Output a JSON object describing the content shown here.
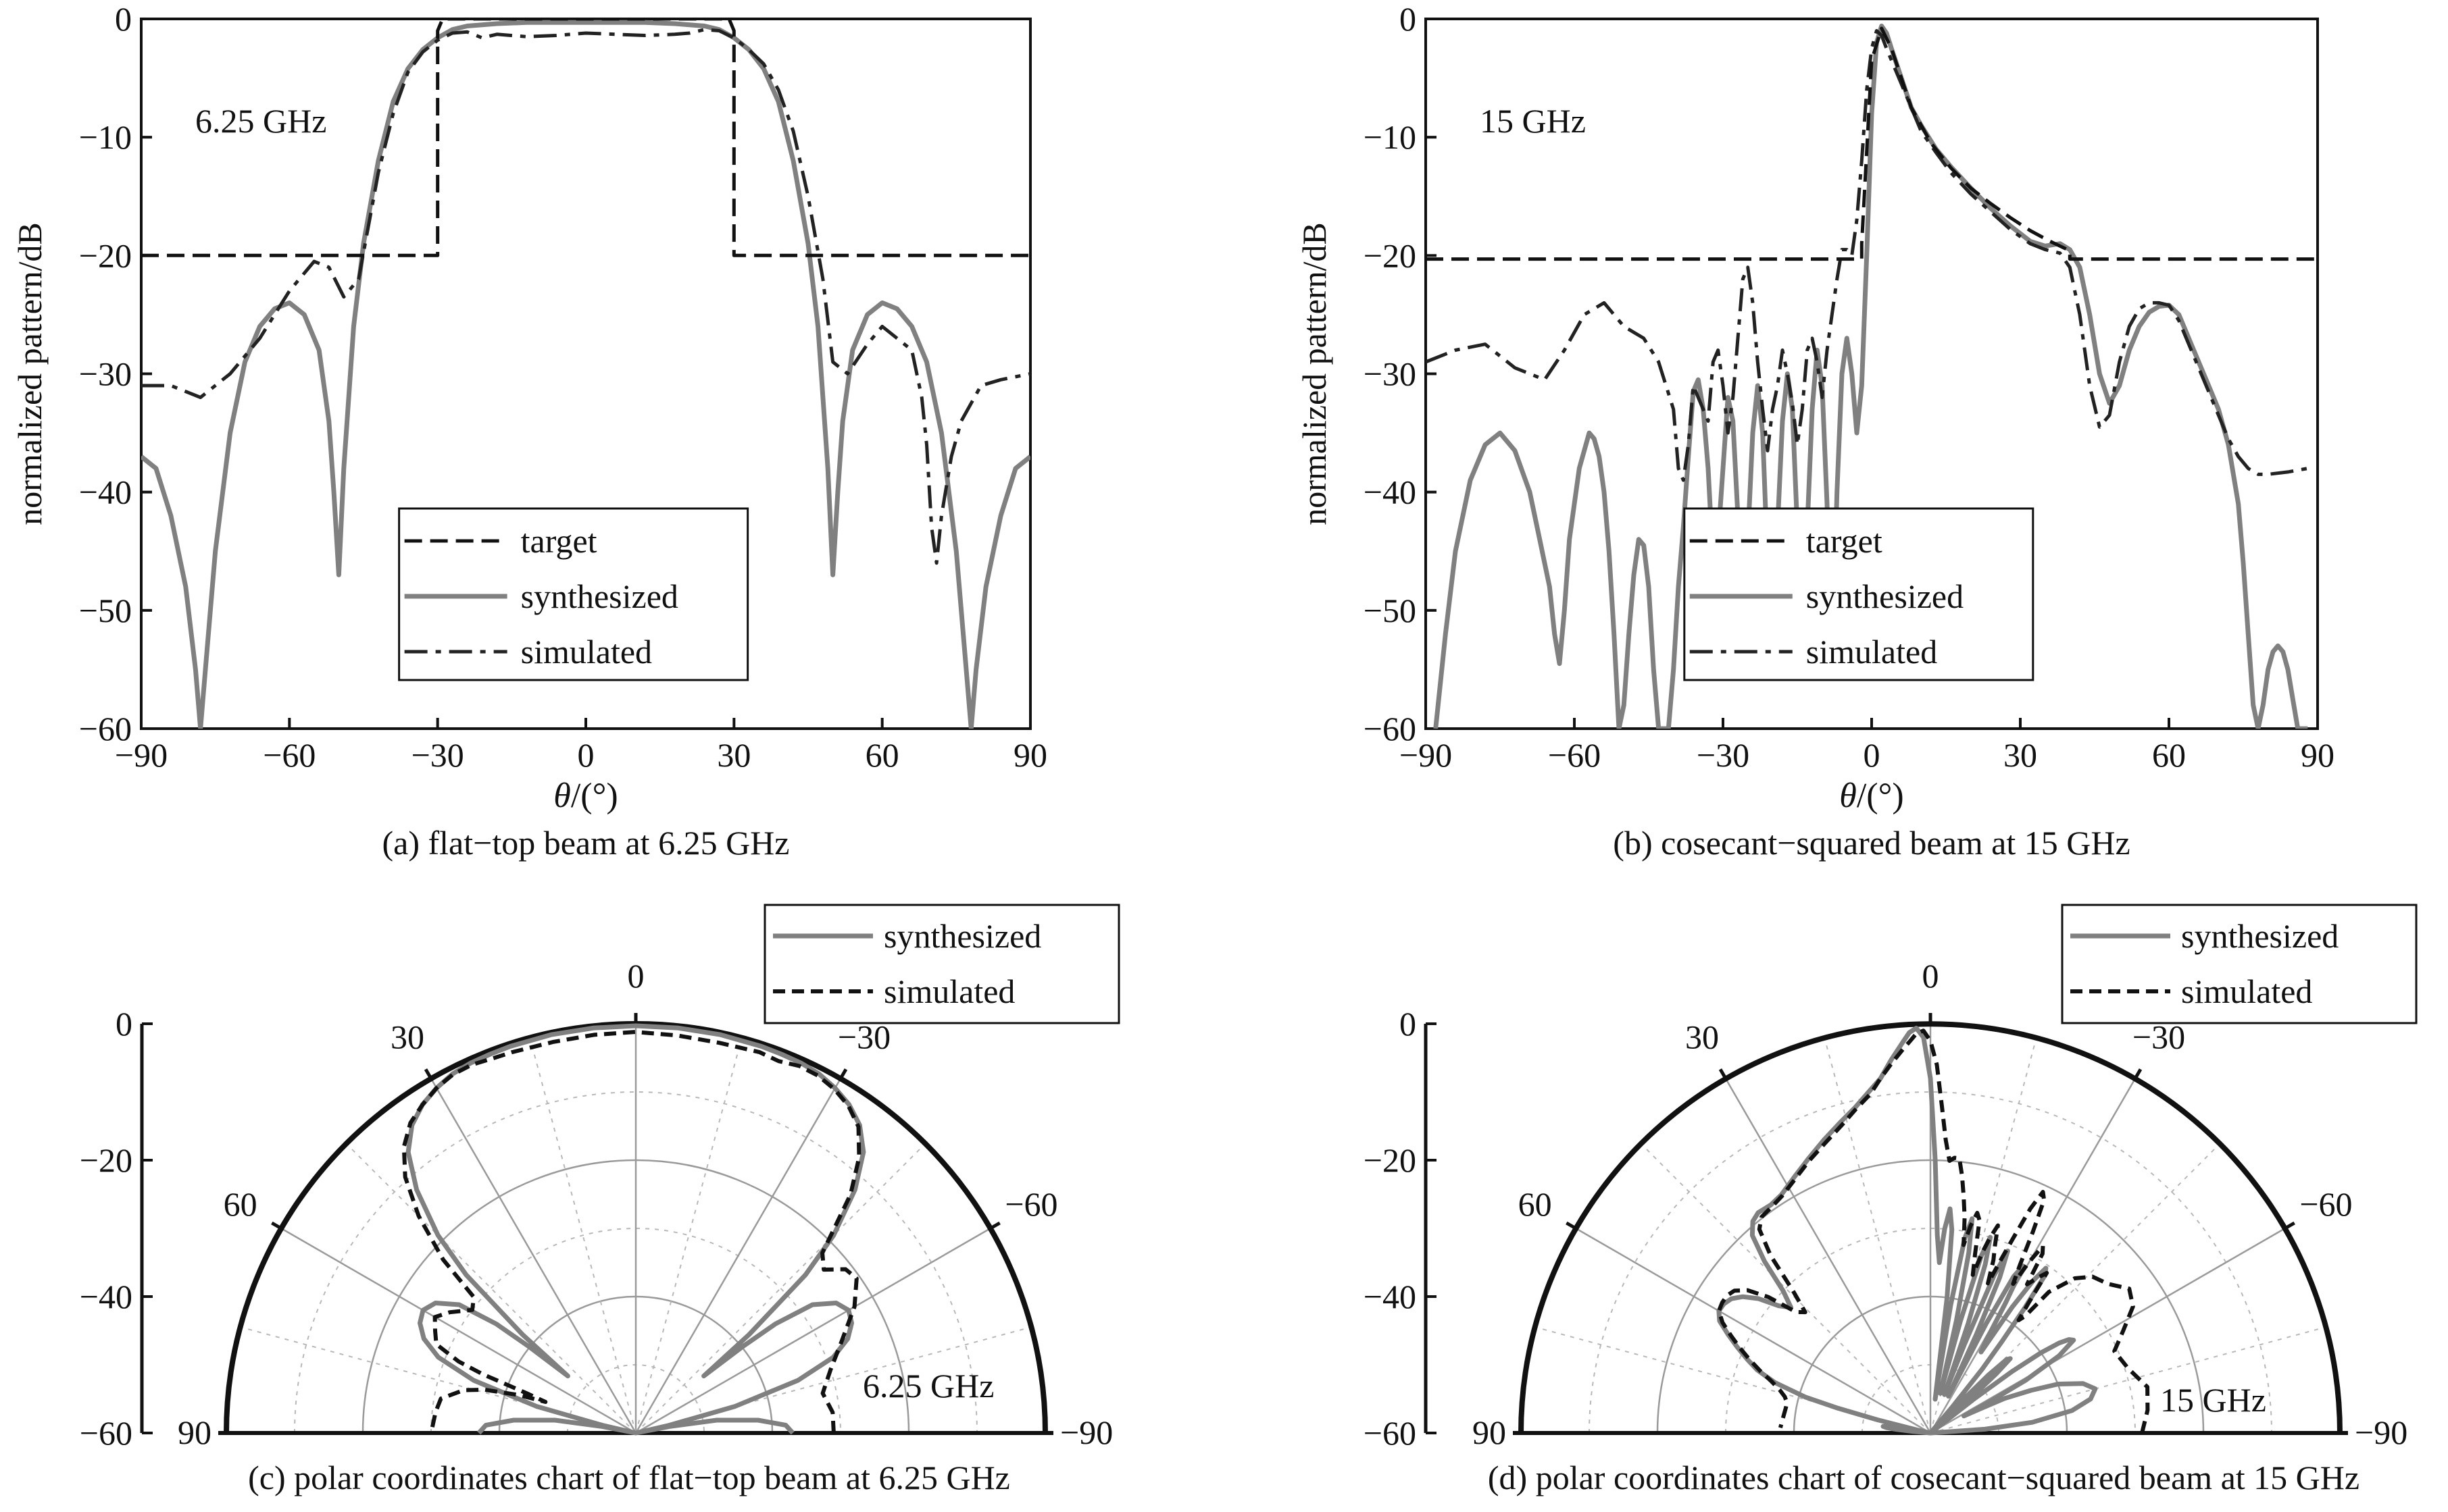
{
  "chart_data": [
    {
      "id": "a",
      "type": "line",
      "caption": "(a) flat−top beam at 6.25 GHz",
      "annotation": "6.25 GHz",
      "xlabel_italic": "θ",
      "xlabel_rest": "/(°)",
      "ylabel": "normalized pattern/dB",
      "xlim": [
        -90,
        90
      ],
      "ylim": [
        -60,
        0
      ],
      "xticks": [
        -90,
        -60,
        -30,
        0,
        30,
        60,
        90
      ],
      "xtick_labels": [
        "−90",
        "−60",
        "−30",
        "0",
        "30",
        "60",
        "90"
      ],
      "yticks": [
        0,
        -10,
        -20,
        -30,
        -40,
        -50,
        -60
      ],
      "ytick_labels": [
        "0",
        "−10",
        "−20",
        "−30",
        "−40",
        "−50",
        "−60"
      ],
      "legend": [
        "target",
        "synthesized",
        "simulated"
      ],
      "legend_position": "lower-center",
      "series": [
        {
          "name": "target",
          "style": "dashed",
          "color": "#111111",
          "x": [
            -90,
            -30,
            -30,
            -29,
            29,
            30,
            30,
            90
          ],
          "y": [
            -20,
            -20,
            -1,
            0,
            0,
            -1,
            -20,
            -20
          ]
        },
        {
          "name": "synthesized",
          "style": "solid",
          "color": "#808080",
          "x": [
            -90,
            -87,
            -84,
            -81,
            -79,
            -78,
            -77,
            -75,
            -72,
            -69,
            -66,
            -63,
            -60,
            -57,
            -54,
            -52,
            -51,
            -50,
            -49,
            -47,
            -45,
            -42,
            -39,
            -36,
            -33,
            -30,
            -27,
            -24,
            -21,
            -18,
            -12,
            -6,
            0,
            6,
            12,
            18,
            21,
            24,
            27,
            30,
            33,
            36,
            39,
            42,
            45,
            47,
            49,
            50,
            51,
            52,
            54,
            57,
            60,
            63,
            66,
            69,
            72,
            75,
            77,
            78,
            79,
            81,
            84,
            87,
            90
          ],
          "y": [
            -37,
            -38,
            -42,
            -48,
            -55,
            -60,
            -55,
            -45,
            -35,
            -29,
            -26,
            -24.5,
            -24,
            -25,
            -28,
            -34,
            -40,
            -47,
            -38,
            -26,
            -19,
            -12,
            -7,
            -4.2,
            -2.6,
            -1.6,
            -0.9,
            -0.6,
            -0.5,
            -0.4,
            -0.3,
            -0.3,
            -0.3,
            -0.3,
            -0.3,
            -0.4,
            -0.5,
            -0.6,
            -0.9,
            -1.6,
            -2.6,
            -4.2,
            -7,
            -12,
            -19,
            -26,
            -38,
            -47,
            -40,
            -34,
            -28,
            -25,
            -24,
            -24.5,
            -26,
            -29,
            -35,
            -45,
            -55,
            -60,
            -55,
            -48,
            -42,
            -38,
            -37
          ]
        },
        {
          "name": "simulated",
          "style": "dashdot",
          "color": "#222222",
          "x": [
            -90,
            -84,
            -78,
            -72,
            -66,
            -60,
            -55,
            -52,
            -49,
            -46,
            -42,
            -39,
            -36,
            -33,
            -30,
            -27,
            -24,
            -21,
            -18,
            -12,
            -6,
            0,
            6,
            12,
            18,
            21,
            24,
            27,
            30,
            33,
            36,
            39,
            42,
            45,
            48,
            50,
            53,
            57,
            60,
            63,
            66,
            68,
            69,
            70,
            71,
            72,
            74,
            76,
            80,
            84,
            90
          ],
          "y": [
            -31,
            -31,
            -32,
            -30,
            -27,
            -23,
            -20.5,
            -21,
            -23.5,
            -22,
            -13,
            -8,
            -4.5,
            -2.8,
            -1.8,
            -1.2,
            -1.1,
            -1.6,
            -1.3,
            -1.5,
            -1.4,
            -1.2,
            -1.3,
            -1.4,
            -1.3,
            -1.2,
            -0.9,
            -1.0,
            -1.6,
            -2.6,
            -3.8,
            -6,
            -9.5,
            -15,
            -22,
            -29,
            -30,
            -27.5,
            -26,
            -27,
            -28,
            -32,
            -36,
            -43,
            -46,
            -42,
            -37,
            -34,
            -31,
            -30.5,
            -30
          ]
        }
      ]
    },
    {
      "id": "b",
      "type": "line",
      "caption": "(b) cosecant−squared beam at 15 GHz",
      "annotation": "15 GHz",
      "xlabel_italic": "θ",
      "xlabel_rest": "/(°)",
      "ylabel": "normalized pattern/dB",
      "xlim": [
        -90,
        90
      ],
      "ylim": [
        -60,
        0
      ],
      "xticks": [
        -90,
        -60,
        -30,
        0,
        30,
        60,
        90
      ],
      "xtick_labels": [
        "−90",
        "−60",
        "−30",
        "0",
        "30",
        "60",
        "90"
      ],
      "yticks": [
        0,
        -10,
        -20,
        -30,
        -40,
        -50,
        -60
      ],
      "ytick_labels": [
        "0",
        "−10",
        "−20",
        "−30",
        "−40",
        "−50",
        "−60"
      ],
      "legend": [
        "target",
        "synthesized",
        "simulated"
      ],
      "legend_position": "lower-center",
      "series": [
        {
          "name": "target",
          "style": "dashed",
          "color": "#111111",
          "x": [
            -90,
            -2,
            -2,
            0,
            2,
            4,
            8,
            12,
            16,
            20,
            24,
            28,
            32,
            36,
            40,
            40,
            90
          ],
          "y": [
            -20.3,
            -20.3,
            -19,
            -3.5,
            -0.8,
            -2.5,
            -7.5,
            -10.5,
            -12.6,
            -14.3,
            -15.6,
            -16.8,
            -17.9,
            -18.8,
            -19.6,
            -20.3,
            -20.3
          ]
        },
        {
          "name": "synthesized",
          "style": "solid",
          "color": "#808080",
          "x": [
            -88,
            -86,
            -84,
            -81,
            -78,
            -75,
            -72,
            -69,
            -67,
            -65,
            -64,
            -63,
            -62,
            -61,
            -59,
            -57,
            -56,
            -55,
            -54,
            -53,
            -52,
            -51,
            -50,
            -49,
            -48,
            -47,
            -46,
            -45,
            -44,
            -43,
            -42,
            -41,
            -40,
            -39,
            -38,
            -37,
            -36,
            -35,
            -34,
            -33,
            -32,
            -31,
            -30,
            -29,
            -28,
            -27,
            -26,
            -25,
            -24,
            -23,
            -22,
            -21,
            -20,
            -19,
            -18,
            -17,
            -16,
            -15,
            -14,
            -13,
            -12,
            -11,
            -10,
            -9,
            -8,
            -7,
            -6,
            -5,
            -4,
            -3,
            -2,
            -1,
            0,
            1,
            2,
            3,
            4,
            6,
            8,
            10,
            13,
            16,
            20,
            24,
            28,
            32,
            35,
            38,
            40,
            42,
            44,
            46,
            48,
            50,
            52,
            54,
            56,
            58,
            60,
            62,
            64,
            66,
            68,
            70,
            72,
            74,
            75,
            76,
            77,
            78,
            79,
            80,
            81,
            82,
            83,
            84,
            85,
            86,
            87,
            88
          ],
          "y": [
            -60,
            -52,
            -45,
            -39,
            -36,
            -35,
            -36.5,
            -40,
            -44,
            -48,
            -52,
            -54.5,
            -50,
            -44,
            -38,
            -35,
            -35.5,
            -37,
            -40,
            -45,
            -52,
            -60,
            -58,
            -52,
            -47,
            -44,
            -44.5,
            -48,
            -55,
            -60,
            -60,
            -60,
            -55,
            -48,
            -43,
            -37,
            -31.5,
            -30.5,
            -33,
            -38,
            -46,
            -44,
            -38,
            -32,
            -34,
            -42,
            -54,
            -44,
            -35,
            -31,
            -35,
            -46,
            -54,
            -43,
            -34,
            -30,
            -33,
            -43,
            -54,
            -43,
            -33,
            -28,
            -31,
            -41,
            -55,
            -40,
            -30,
            -27,
            -30,
            -35,
            -31,
            -20,
            -8,
            -2,
            -0.6,
            -1.2,
            -2.5,
            -5,
            -7.5,
            -9,
            -11,
            -12.5,
            -14.3,
            -16,
            -17.5,
            -18.8,
            -19.2,
            -19,
            -19.5,
            -21,
            -25,
            -30,
            -32.5,
            -31,
            -28,
            -26,
            -24.8,
            -24.3,
            -24.2,
            -25,
            -27,
            -29,
            -31,
            -33,
            -36,
            -41,
            -46,
            -52,
            -58,
            -60,
            -58,
            -55,
            -53.5,
            -53,
            -53.5,
            -55,
            -57.5,
            -60,
            -60,
            -60
          ]
        },
        {
          "name": "simulated",
          "style": "dashdot",
          "color": "#222222",
          "x": [
            -90,
            -84,
            -78,
            -72,
            -66,
            -62,
            -58,
            -54,
            -50,
            -46,
            -43,
            -40,
            -39,
            -38,
            -37,
            -36,
            -35,
            -34,
            -33,
            -32,
            -31,
            -30,
            -29,
            -28,
            -27,
            -26,
            -25,
            -24,
            -23,
            -22,
            -21,
            -20,
            -19,
            -18,
            -17,
            -16,
            -15,
            -14,
            -13,
            -12,
            -11,
            -10,
            -9,
            -8,
            -7,
            -6,
            -5,
            -4,
            -3,
            -2,
            -1,
            0,
            1,
            2,
            3,
            4,
            6,
            8,
            10,
            13,
            16,
            20,
            24,
            28,
            32,
            35,
            38,
            40,
            42,
            44,
            46,
            48,
            50,
            52,
            54,
            56,
            58,
            60,
            62,
            64,
            66,
            68,
            70,
            72,
            74,
            76,
            78,
            80,
            84,
            88
          ],
          "y": [
            -29,
            -28,
            -27.5,
            -29.5,
            -30.5,
            -28,
            -25,
            -24,
            -26,
            -27,
            -29,
            -33,
            -38,
            -39,
            -36,
            -31,
            -32,
            -33,
            -34,
            -29,
            -28,
            -31,
            -35,
            -32,
            -27,
            -22,
            -21,
            -24,
            -29,
            -33,
            -36.5,
            -33,
            -31,
            -28,
            -30,
            -32.5,
            -36,
            -33,
            -28,
            -27,
            -29,
            -32,
            -28,
            -25,
            -22,
            -19.5,
            -19.5,
            -20,
            -17,
            -12,
            -6,
            -2.5,
            -1,
            -1.4,
            -2.5,
            -3.5,
            -5.5,
            -7.5,
            -9.5,
            -11.3,
            -13,
            -14.8,
            -16.3,
            -17.8,
            -19,
            -19.5,
            -19.8,
            -21,
            -25,
            -31,
            -34.5,
            -33.5,
            -29,
            -26,
            -24.5,
            -24,
            -24,
            -24.2,
            -25.5,
            -27.5,
            -29.5,
            -31.5,
            -33.5,
            -35.5,
            -37,
            -38,
            -38.5,
            -38.5,
            -38.3,
            -38
          ]
        }
      ]
    },
    {
      "id": "c",
      "type": "polar",
      "caption": "(c) polar coordinates chart of flat−top beam at 6.25 GHz",
      "annotation": "6.25 GHz",
      "rlim": [
        -60,
        0
      ],
      "rticks": [
        0,
        -20,
        -40,
        -60
      ],
      "rtick_labels": [
        "0",
        "−20",
        "−40",
        "−60"
      ],
      "angle_labels": [
        {
          "angle": 90,
          "text": "90"
        },
        {
          "angle": 60,
          "text": "60"
        },
        {
          "angle": 30,
          "text": "30"
        },
        {
          "angle": 0,
          "text": "0"
        },
        {
          "angle": -30,
          "text": "−30"
        },
        {
          "angle": -60,
          "text": "−60"
        },
        {
          "angle": -90,
          "text": "−90"
        }
      ],
      "legend": [
        "synthesized",
        "simulated"
      ],
      "legend_position": "top-right",
      "series": [
        {
          "name": "synthesized",
          "style": "solid",
          "color": "#808080",
          "source": "a.synthesized"
        },
        {
          "name": "simulated",
          "style": "dashed",
          "color": "#111111",
          "source": "a.simulated"
        }
      ]
    },
    {
      "id": "d",
      "type": "polar",
      "caption": "(d) polar coordinates chart of cosecant−squared beam at 15 GHz",
      "annotation": "15 GHz",
      "rlim": [
        -60,
        0
      ],
      "rticks": [
        0,
        -20,
        -40,
        -60
      ],
      "rtick_labels": [
        "0",
        "−20",
        "−40",
        "−60"
      ],
      "angle_labels": [
        {
          "angle": 90,
          "text": "90"
        },
        {
          "angle": 60,
          "text": "60"
        },
        {
          "angle": 30,
          "text": "30"
        },
        {
          "angle": 0,
          "text": "0"
        },
        {
          "angle": -30,
          "text": "−30"
        },
        {
          "angle": -60,
          "text": "−60"
        },
        {
          "angle": -90,
          "text": "−90"
        }
      ],
      "legend": [
        "synthesized",
        "simulated"
      ],
      "legend_position": "top-right",
      "series": [
        {
          "name": "synthesized",
          "style": "solid",
          "color": "#808080",
          "source": "b.synthesized"
        },
        {
          "name": "simulated",
          "style": "dashed",
          "color": "#111111",
          "source": "b.simulated"
        }
      ]
    }
  ]
}
